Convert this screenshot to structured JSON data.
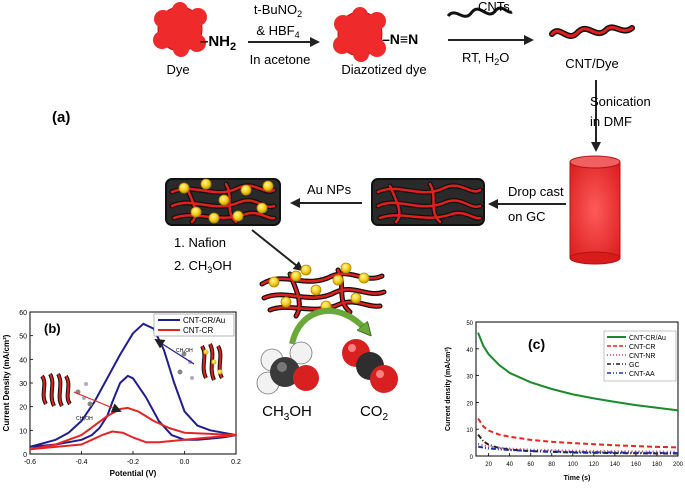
{
  "scheme": {
    "dye_label": "Dye",
    "amine_group": "–NH",
    "amine_sub": "2",
    "reagent_line1_pre": "t-BuNO",
    "reagent_line1_sub": "2",
    "reagent_line2": "& HBF",
    "reagent_line2_sub": "4",
    "reagent_line3": "In acetone",
    "diazo_group": "–N≡N",
    "diazotized_label": "Diazotized dye",
    "cnts_label": "CNTs",
    "conditions_pre": "RT, H",
    "conditions_sub": "2",
    "conditions_post": "O",
    "cnt_dye_label": "CNT/Dye",
    "panel_a": "(a)",
    "sonication_line1": "Sonication",
    "sonication_line2": "in DMF",
    "dropcast_line1": "Drop cast",
    "dropcast_line2": "on GC",
    "aunps_label": "Au NPs",
    "nafion_label": "1. Nafion",
    "ch3oh_step_pre": "2. CH",
    "ch3oh_step_sub": "3",
    "ch3oh_step_post": "OH",
    "methanol_pre": "CH",
    "methanol_sub": "3",
    "methanol_post": "OH",
    "co2_pre": "CO",
    "co2_sub": "2"
  },
  "colors": {
    "dye_red": "#ee2a2a",
    "cnt_red": "#e0201c",
    "gold": "#f5cf1a",
    "arrow_green": "#6aa83a",
    "navy": "#1e1e8e",
    "cv_red": "#e52525",
    "ca_green": "#1a8a2a"
  },
  "chart_data": [
    {
      "type": "line",
      "panel_label": "(b)",
      "xlabel": "Potential (V)",
      "ylabel": "Current Density (mA/cm²)",
      "xlim": [
        -0.6,
        0.2
      ],
      "ylim": [
        0,
        60
      ],
      "xticks": [
        "-0.6",
        "-0.4",
        "-0.2",
        "0.0",
        "0.2"
      ],
      "yticks": [
        "0",
        "10",
        "20",
        "30",
        "40",
        "50",
        "60"
      ],
      "inset_label": "CH₃OH",
      "series": [
        {
          "name": "CNT-CR/Au",
          "color": "#1e1e8e",
          "x": [
            -0.6,
            -0.5,
            -0.45,
            -0.4,
            -0.35,
            -0.3,
            -0.25,
            -0.2,
            -0.16,
            -0.12,
            -0.08,
            -0.04,
            0.0,
            0.05,
            0.1,
            0.15,
            0.2,
            0.15,
            0.1,
            0.05,
            0.0,
            -0.05,
            -0.1,
            -0.15,
            -0.2,
            -0.22,
            -0.25,
            -0.28,
            -0.3,
            -0.33,
            -0.36,
            -0.4,
            -0.45,
            -0.5,
            -0.55,
            -0.6
          ],
          "y": [
            3,
            6,
            9,
            14,
            22,
            32,
            42,
            51,
            55,
            53,
            44,
            30,
            18,
            12,
            10,
            9,
            8,
            7,
            6.5,
            6,
            6,
            8,
            14,
            24,
            32,
            33,
            30,
            22,
            16,
            11,
            8,
            6,
            5,
            4,
            3.5,
            3
          ]
        },
        {
          "name": "CNT-CR",
          "color": "#e52525",
          "x": [
            -0.6,
            -0.5,
            -0.4,
            -0.35,
            -0.3,
            -0.25,
            -0.22,
            -0.18,
            -0.12,
            -0.06,
            0.0,
            0.1,
            0.2,
            0.1,
            0.0,
            -0.1,
            -0.15,
            -0.2,
            -0.24,
            -0.28,
            -0.32,
            -0.36,
            -0.4,
            -0.5,
            -0.6
          ],
          "y": [
            2,
            4,
            8,
            12,
            16,
            19,
            19.5,
            18,
            14,
            11,
            9,
            8.5,
            8,
            7,
            6,
            5,
            5,
            7,
            9,
            9.5,
            8,
            6,
            4,
            3,
            2
          ]
        }
      ]
    },
    {
      "type": "line",
      "panel_label": "(c)",
      "xlabel": "Time (s)",
      "ylabel": "Current density (mA/cm²)",
      "xlim": [
        8,
        200
      ],
      "ylim": [
        0,
        50
      ],
      "xticks": [
        "20",
        "40",
        "60",
        "80",
        "100",
        "120",
        "140",
        "160",
        "180",
        "200"
      ],
      "yticks": [
        "0",
        "10",
        "20",
        "30",
        "40",
        "50"
      ],
      "series": [
        {
          "name": "CNT-CR/Au",
          "color": "#1a8a2a",
          "dash": "solid",
          "x": [
            10,
            12,
            15,
            20,
            30,
            40,
            60,
            80,
            100,
            120,
            140,
            160,
            180,
            200
          ],
          "y": [
            46,
            44,
            41,
            38,
            34,
            31,
            27.5,
            25,
            23,
            21.5,
            20.2,
            19,
            18,
            17
          ]
        },
        {
          "name": "CNT-CR",
          "color": "#e52525",
          "dash": "dashed",
          "x": [
            10,
            15,
            20,
            30,
            40,
            60,
            80,
            100,
            120,
            140,
            160,
            180,
            200
          ],
          "y": [
            14,
            11,
            9.5,
            8,
            7.2,
            6,
            5.3,
            4.8,
            4.4,
            4,
            3.7,
            3.4,
            3.2
          ]
        },
        {
          "name": "CNT-NR",
          "color": "#d04060",
          "dash": "dotted",
          "x": [
            10,
            20,
            40,
            60,
            100,
            140,
            200
          ],
          "y": [
            4.5,
            3.5,
            2.8,
            2.4,
            2,
            1.8,
            1.6
          ]
        },
        {
          "name": "GC",
          "color": "#222222",
          "dash": "dashdot",
          "x": [
            10,
            15,
            20,
            30,
            40,
            60,
            100,
            140,
            200
          ],
          "y": [
            8,
            5.5,
            4.2,
            3,
            2.4,
            1.8,
            1.3,
            1.1,
            0.9
          ]
        },
        {
          "name": "CNT-AA",
          "color": "#2030b0",
          "dash": "dashdotdot",
          "x": [
            10,
            20,
            40,
            60,
            100,
            140,
            200
          ],
          "y": [
            3.5,
            2.8,
            2.2,
            1.9,
            1.5,
            1.3,
            1.1
          ]
        }
      ]
    }
  ]
}
